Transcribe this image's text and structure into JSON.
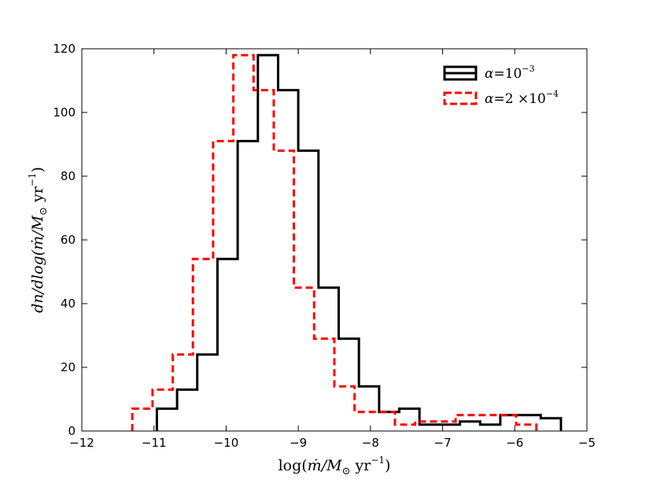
{
  "chart_data": {
    "type": "step-histogram",
    "xlabel": "log(ṁ/M⊙ yr⁻¹)",
    "ylabel": "dn/dlog(ṁ/M⊙ yr⁻¹)",
    "xlim": [
      -12,
      -5
    ],
    "ylim": [
      0,
      120
    ],
    "xticks": [
      -12,
      -11,
      -10,
      -9,
      -8,
      -7,
      -6,
      -5
    ],
    "xtick_labels": [
      "−12",
      "−11",
      "−10",
      "−9",
      "−8",
      "−7",
      "−6",
      "−5"
    ],
    "yticks": [
      0,
      20,
      40,
      60,
      80,
      100,
      120
    ],
    "ytick_labels": [
      "0",
      "20",
      "40",
      "60",
      "80",
      "100",
      "120"
    ],
    "legend_position": "top-right",
    "series": [
      {
        "name": "α = 10⁻³",
        "color": "#000000",
        "dash": "solid",
        "edges": [
          -10.96,
          -10.68,
          -10.4,
          -10.12,
          -9.84,
          -9.56,
          -9.28,
          -9.0,
          -8.72,
          -8.44,
          -8.16,
          -7.88,
          -7.6,
          -7.32,
          -7.04,
          -6.76,
          -6.48,
          -6.2,
          -5.92,
          -5.64,
          -5.36
        ],
        "values": [
          7,
          13,
          24,
          54,
          91,
          118,
          107,
          88,
          45,
          29,
          14,
          6,
          7,
          2,
          2,
          3,
          2,
          5,
          5,
          4
        ]
      },
      {
        "name": "α = 2 ×10⁻⁴",
        "color": "#ff0000",
        "dash": "dashed",
        "edges": [
          -11.3,
          -11.02,
          -10.74,
          -10.46,
          -10.18,
          -9.9,
          -9.62,
          -9.34,
          -9.06,
          -8.78,
          -8.5,
          -8.22,
          -7.94,
          -7.66,
          -7.38,
          -7.1,
          -6.82,
          -6.54,
          -6.26,
          -5.98,
          -5.7
        ],
        "values": [
          7,
          13,
          24,
          54,
          91,
          118,
          107,
          88,
          45,
          29,
          14,
          6,
          6,
          2,
          3,
          3,
          5,
          5,
          5,
          2
        ]
      }
    ]
  },
  "legend": {
    "entries": [
      {
        "base": "α",
        "rel": "=10",
        "sup": "−3"
      },
      {
        "base": "α",
        "rel": "=2 ×10",
        "sup": "−4"
      }
    ]
  },
  "axis_labels": {
    "x": {
      "prefix": "log(",
      "m": "ṁ",
      "mid": "/M",
      "sun": "⊙",
      "unit": " yr",
      "sup": "−1",
      "suffix": ")"
    },
    "y": {
      "prefix": "dn/dlog(",
      "m": "ṁ",
      "mid": "/M",
      "sun": "⊙",
      "unit": " yr",
      "sup": "−1",
      "suffix": ")"
    }
  }
}
